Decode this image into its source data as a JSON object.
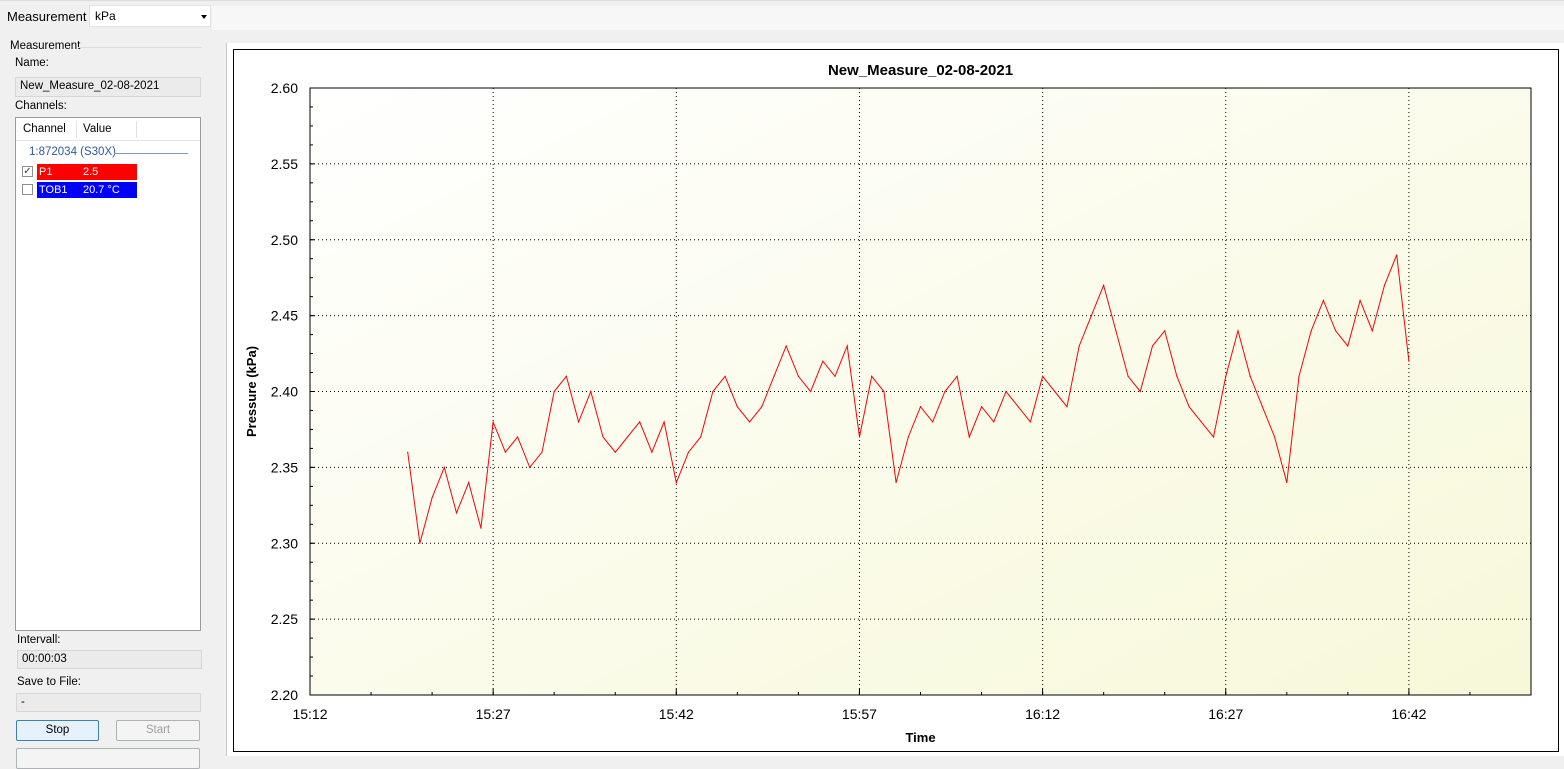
{
  "toolbar": {
    "measurement_label": "Measurement",
    "unit_select": "kPa"
  },
  "left_panel": {
    "group_title": "Measurement",
    "name_label": "Name:",
    "name_value": "New_Measure_02-08-2021",
    "channels_label": "Channels:",
    "columns": [
      "Channel",
      "Value"
    ],
    "device": "1:872034 (S30X)",
    "channels": [
      {
        "name": "P1",
        "value": "2.5",
        "checked": true,
        "color": "#ff0000"
      },
      {
        "name": "TOB1",
        "value": "20.7 °C",
        "checked": false,
        "color": "#0000ff"
      }
    ],
    "interval_label": "Intervall:",
    "interval_value": "00:00:03",
    "save_label": "Save to File:",
    "save_value": "-",
    "stop_button": "Stop",
    "start_button": "Start"
  },
  "chart_data": {
    "type": "line",
    "title": "New_Measure_02-08-2021",
    "xlabel": "Time",
    "ylabel": "Pressure (kPa)",
    "x_ticks": [
      "15:12",
      "15:27",
      "15:42",
      "15:57",
      "16:12",
      "16:27",
      "16:42"
    ],
    "xlim": [
      "15:12",
      "16:52"
    ],
    "ylim": [
      2.2,
      2.6
    ],
    "y_ticks": [
      2.2,
      2.25,
      2.3,
      2.35,
      2.4,
      2.45,
      2.5,
      2.55,
      2.6
    ],
    "grid": "dotted",
    "background": "gradient white to light yellow",
    "series": [
      {
        "color": "#ff0000",
        "x": [
          "15:20",
          "15:21",
          "15:22",
          "15:23",
          "15:24",
          "15:25",
          "15:26",
          "15:27",
          "15:28",
          "15:29",
          "15:30",
          "15:31",
          "15:32",
          "15:33",
          "15:34",
          "15:35",
          "15:36",
          "15:37",
          "15:38",
          "15:39",
          "15:40",
          "15:41",
          "15:42",
          "15:43",
          "15:44",
          "15:45",
          "15:46",
          "15:47",
          "15:48",
          "15:49",
          "15:50",
          "15:51",
          "15:52",
          "15:53",
          "15:54",
          "15:55",
          "15:56",
          "15:57",
          "15:58",
          "15:59",
          "16:00",
          "16:01",
          "16:02",
          "16:03",
          "16:04",
          "16:05",
          "16:06",
          "16:07",
          "16:08",
          "16:09",
          "16:10",
          "16:11",
          "16:12",
          "16:13",
          "16:14",
          "16:15",
          "16:16",
          "16:17",
          "16:18",
          "16:19",
          "16:20",
          "16:21",
          "16:22",
          "16:23",
          "16:24",
          "16:25",
          "16:26",
          "16:27",
          "16:28",
          "16:29",
          "16:30",
          "16:31",
          "16:32",
          "16:33",
          "16:34",
          "16:35",
          "16:36",
          "16:37",
          "16:38",
          "16:39",
          "16:40",
          "16:41",
          "16:42"
        ],
        "values": [
          2.36,
          2.3,
          2.33,
          2.35,
          2.32,
          2.34,
          2.31,
          2.38,
          2.36,
          2.37,
          2.35,
          2.36,
          2.4,
          2.41,
          2.38,
          2.4,
          2.37,
          2.36,
          2.37,
          2.38,
          2.36,
          2.38,
          2.34,
          2.36,
          2.37,
          2.4,
          2.41,
          2.39,
          2.38,
          2.39,
          2.41,
          2.43,
          2.41,
          2.4,
          2.42,
          2.41,
          2.43,
          2.37,
          2.41,
          2.4,
          2.34,
          2.37,
          2.39,
          2.38,
          2.4,
          2.41,
          2.37,
          2.39,
          2.38,
          2.4,
          2.39,
          2.38,
          2.41,
          2.4,
          2.39,
          2.43,
          2.45,
          2.47,
          2.44,
          2.41,
          2.4,
          2.43,
          2.44,
          2.41,
          2.39,
          2.38,
          2.37,
          2.41,
          2.44,
          2.41,
          2.39,
          2.37,
          2.34,
          2.41,
          2.44,
          2.46,
          2.44,
          2.43,
          2.46,
          2.44,
          2.47,
          2.49,
          2.42
        ]
      }
    ]
  }
}
